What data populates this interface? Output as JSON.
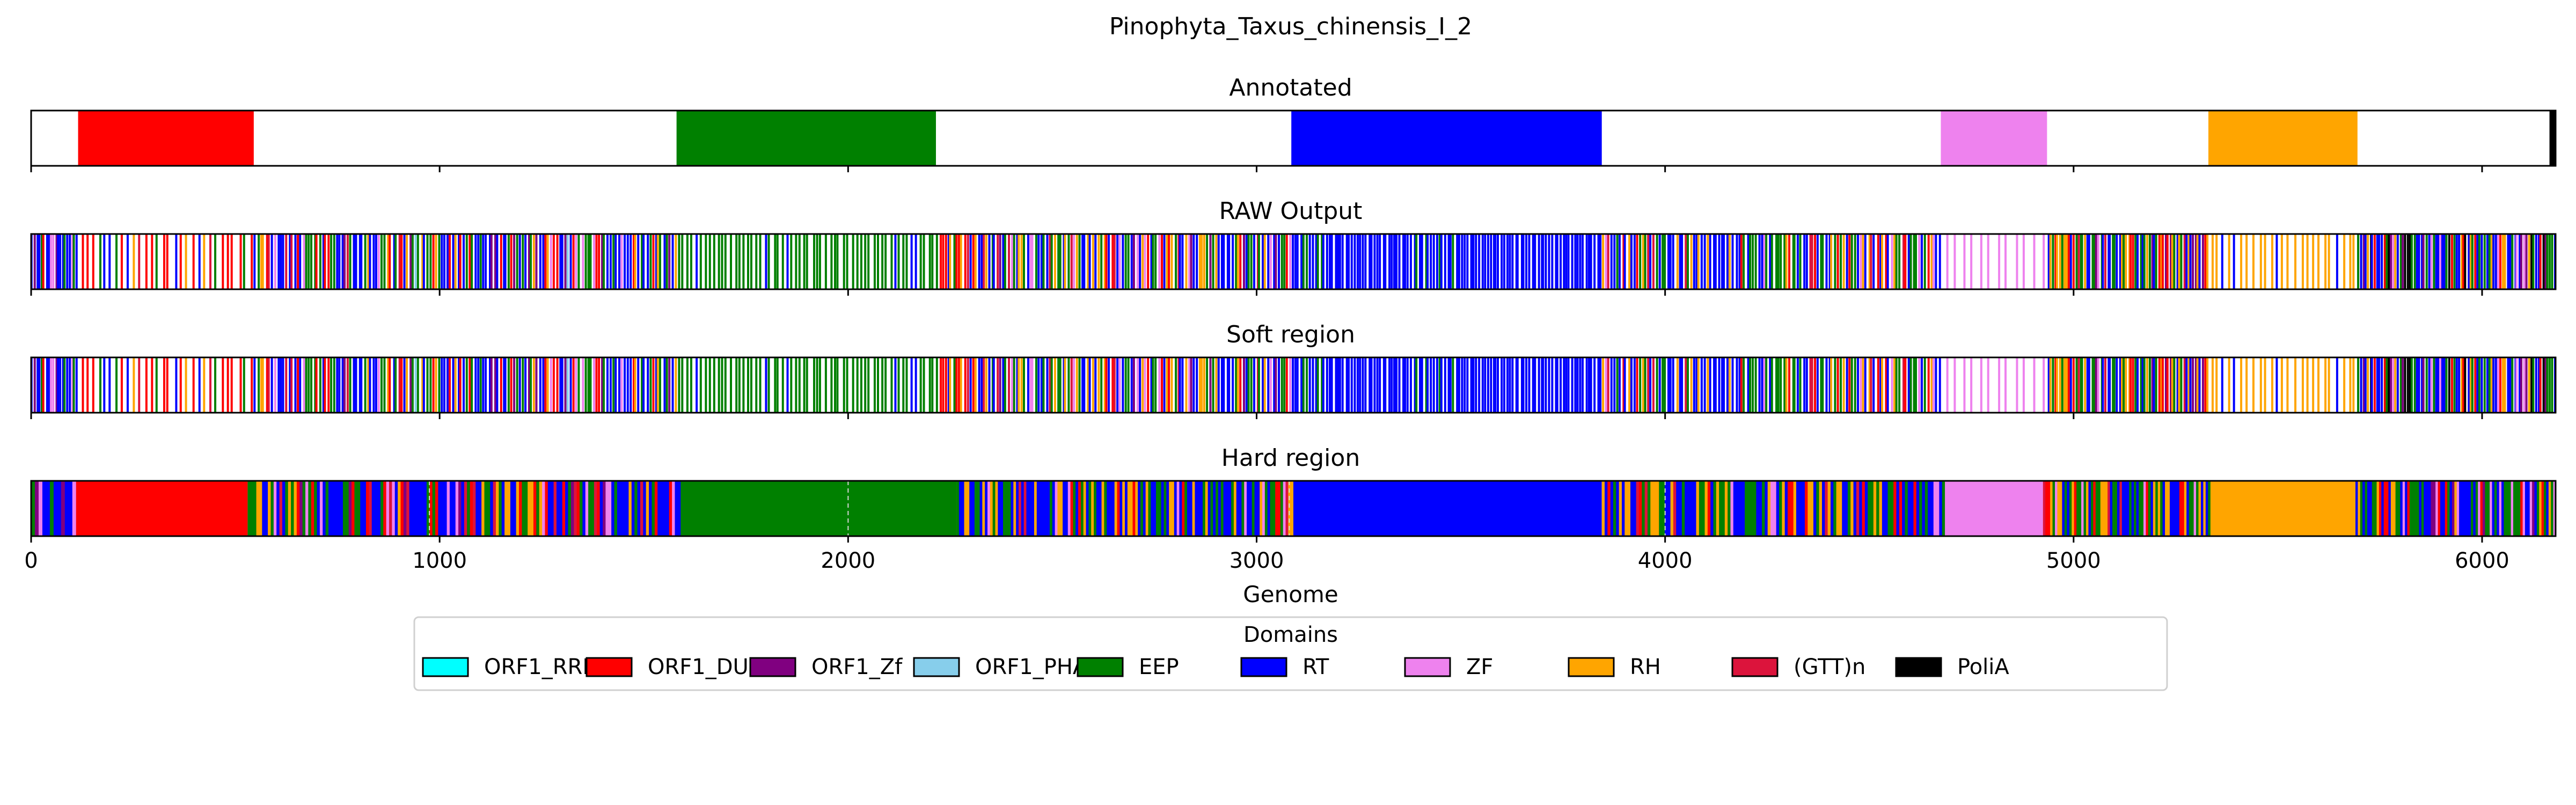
{
  "figure": {
    "title": "Pinophyta_Taxus_chinensis_I_2",
    "xlabel": "Genome",
    "legend_title": "Domains"
  },
  "domains": [
    {
      "key": "ORF1_RRM",
      "label": "ORF1_RRM",
      "color": "#00ffff"
    },
    {
      "key": "ORF1_DUF",
      "label": "ORF1_DUF",
      "color": "#ff0000"
    },
    {
      "key": "ORF1_Zf",
      "label": "ORF1_Zf",
      "color": "#800080"
    },
    {
      "key": "ORF1_PHA",
      "label": "ORF1_PHA",
      "color": "#87ceeb"
    },
    {
      "key": "EEP",
      "label": "EEP",
      "color": "#008000"
    },
    {
      "key": "RT",
      "label": "RT",
      "color": "#0000ff"
    },
    {
      "key": "ZF",
      "label": "ZF",
      "color": "#ee82ee"
    },
    {
      "key": "RH",
      "label": "RH",
      "color": "#ffa500"
    },
    {
      "key": "GTTn",
      "label": "(GTT)n",
      "color": "#dc143c"
    },
    {
      "key": "PoliA",
      "label": "PoliA",
      "color": "#000000"
    }
  ],
  "chart_data": {
    "type": "bar",
    "xlim": [
      0,
      6180
    ],
    "xticks": [
      0,
      1000,
      2000,
      3000,
      4000,
      5000,
      6000
    ],
    "tracks": [
      {
        "title": "Annotated",
        "style": "blocks",
        "segments": [
          {
            "domain": "ORF1_DUF",
            "start": 115,
            "end": 545
          },
          {
            "domain": "EEP",
            "start": 1580,
            "end": 2215
          },
          {
            "domain": "RT",
            "start": 3085,
            "end": 3845
          },
          {
            "domain": "ZF",
            "start": 4675,
            "end": 4935
          },
          {
            "domain": "RH",
            "start": 5330,
            "end": 5695
          },
          {
            "domain": "PoliA",
            "start": 6165,
            "end": 6178
          }
        ]
      },
      {
        "title": "RAW Output",
        "style": "positions",
        "regions": [
          {
            "start": 0,
            "end": 115,
            "count": 20,
            "weights": {
              "RT": 5,
              "ORF1_Zf": 1,
              "ORF1_DUF": 1,
              "EEP": 1,
              "ZF": 1
            }
          },
          {
            "start": 115,
            "end": 545,
            "count": 30,
            "weights": {
              "ORF1_DUF": 8,
              "RT": 1,
              "EEP": 1,
              "RH": 1,
              "GTTn": 1
            }
          },
          {
            "start": 545,
            "end": 1580,
            "count": 150,
            "weights": {
              "RT": 5,
              "EEP": 3,
              "ORF1_DUF": 2,
              "RH": 1,
              "ZF": 1,
              "ORF1_Zf": 1,
              "GTTn": 1,
              "ORF1_PHA": 0.5
            }
          },
          {
            "start": 1580,
            "end": 2215,
            "count": 60,
            "weights": {
              "EEP": 10,
              "RT": 1
            }
          },
          {
            "start": 2215,
            "end": 3085,
            "count": 130,
            "weights": {
              "RT": 5,
              "EEP": 3,
              "RH": 2,
              "ORF1_DUF": 1,
              "ZF": 1,
              "GTTn": 1,
              "ORF1_Zf": 0.5
            }
          },
          {
            "start": 3085,
            "end": 3845,
            "count": 110,
            "weights": {
              "RT": 12,
              "EEP": 1
            }
          },
          {
            "start": 3845,
            "end": 4675,
            "count": 120,
            "weights": {
              "RT": 4,
              "EEP": 3,
              "RH": 2,
              "ORF1_DUF": 1,
              "ZF": 1,
              "GTTn": 1
            }
          },
          {
            "start": 4675,
            "end": 4935,
            "count": 12,
            "weights": {
              "ZF": 10,
              "RT": 1
            }
          },
          {
            "start": 4935,
            "end": 5330,
            "count": 70,
            "weights": {
              "RT": 3,
              "EEP": 3,
              "RH": 2,
              "ORF1_DUF": 1,
              "ZF": 1,
              "GTTn": 1,
              "ORF1_Zf": 1
            }
          },
          {
            "start": 5330,
            "end": 5695,
            "count": 25,
            "weights": {
              "RH": 10,
              "RT": 1
            }
          },
          {
            "start": 5695,
            "end": 6180,
            "count": 85,
            "weights": {
              "RT": 4,
              "EEP": 3,
              "ZF": 1,
              "ORF1_DUF": 1,
              "RH": 1,
              "ORF1_Zf": 1,
              "PoliA": 0.4
            }
          }
        ]
      },
      {
        "title": "Soft region",
        "style": "positions",
        "same_as": "RAW Output"
      },
      {
        "title": "Hard region",
        "style": "filled",
        "dashed_positions": [
          975,
          2000,
          3080,
          4000
        ],
        "regions": [
          {
            "start": 0,
            "end": 110,
            "mixed": true,
            "count": 12,
            "weights": {
              "RT": 5,
              "EEP": 2,
              "ORF1_Zf": 1,
              "ZF": 1,
              "ORF1_DUF": 1
            }
          },
          {
            "start": 110,
            "end": 530,
            "domain": "ORF1_DUF"
          },
          {
            "start": 530,
            "end": 1590,
            "mixed": true,
            "count": 150,
            "weights": {
              "RT": 5,
              "EEP": 3,
              "RH": 1,
              "ORF1_DUF": 1,
              "ZF": 1,
              "ORF1_Zf": 0.8,
              "GTTn": 0.6
            }
          },
          {
            "start": 1590,
            "end": 2265,
            "domain": "EEP"
          },
          {
            "start": 2265,
            "end": 3090,
            "mixed": true,
            "count": 130,
            "weights": {
              "RT": 5,
              "EEP": 3,
              "RH": 2,
              "ORF1_DUF": 0.8,
              "ZF": 0.8,
              "GTTn": 0.6
            }
          },
          {
            "start": 3090,
            "end": 3845,
            "domain": "RT"
          },
          {
            "start": 3845,
            "end": 4685,
            "mixed": true,
            "count": 120,
            "weights": {
              "RT": 4,
              "EEP": 3,
              "RH": 2,
              "ORF1_DUF": 1,
              "ZF": 0.8,
              "GTTn": 0.6
            }
          },
          {
            "start": 4685,
            "end": 4925,
            "domain": "ZF"
          },
          {
            "start": 4925,
            "end": 5335,
            "mixed": true,
            "count": 70,
            "weights": {
              "RT": 3,
              "EEP": 3,
              "RH": 2,
              "ORF1_DUF": 1,
              "ZF": 1,
              "GTTn": 0.6
            }
          },
          {
            "start": 5335,
            "end": 5690,
            "domain": "RH"
          },
          {
            "start": 5690,
            "end": 6180,
            "mixed": true,
            "count": 85,
            "weights": {
              "RT": 4,
              "EEP": 3,
              "ZF": 1,
              "RH": 1,
              "ORF1_DUF": 1,
              "ORF1_Zf": 0.6
            }
          }
        ]
      }
    ]
  }
}
